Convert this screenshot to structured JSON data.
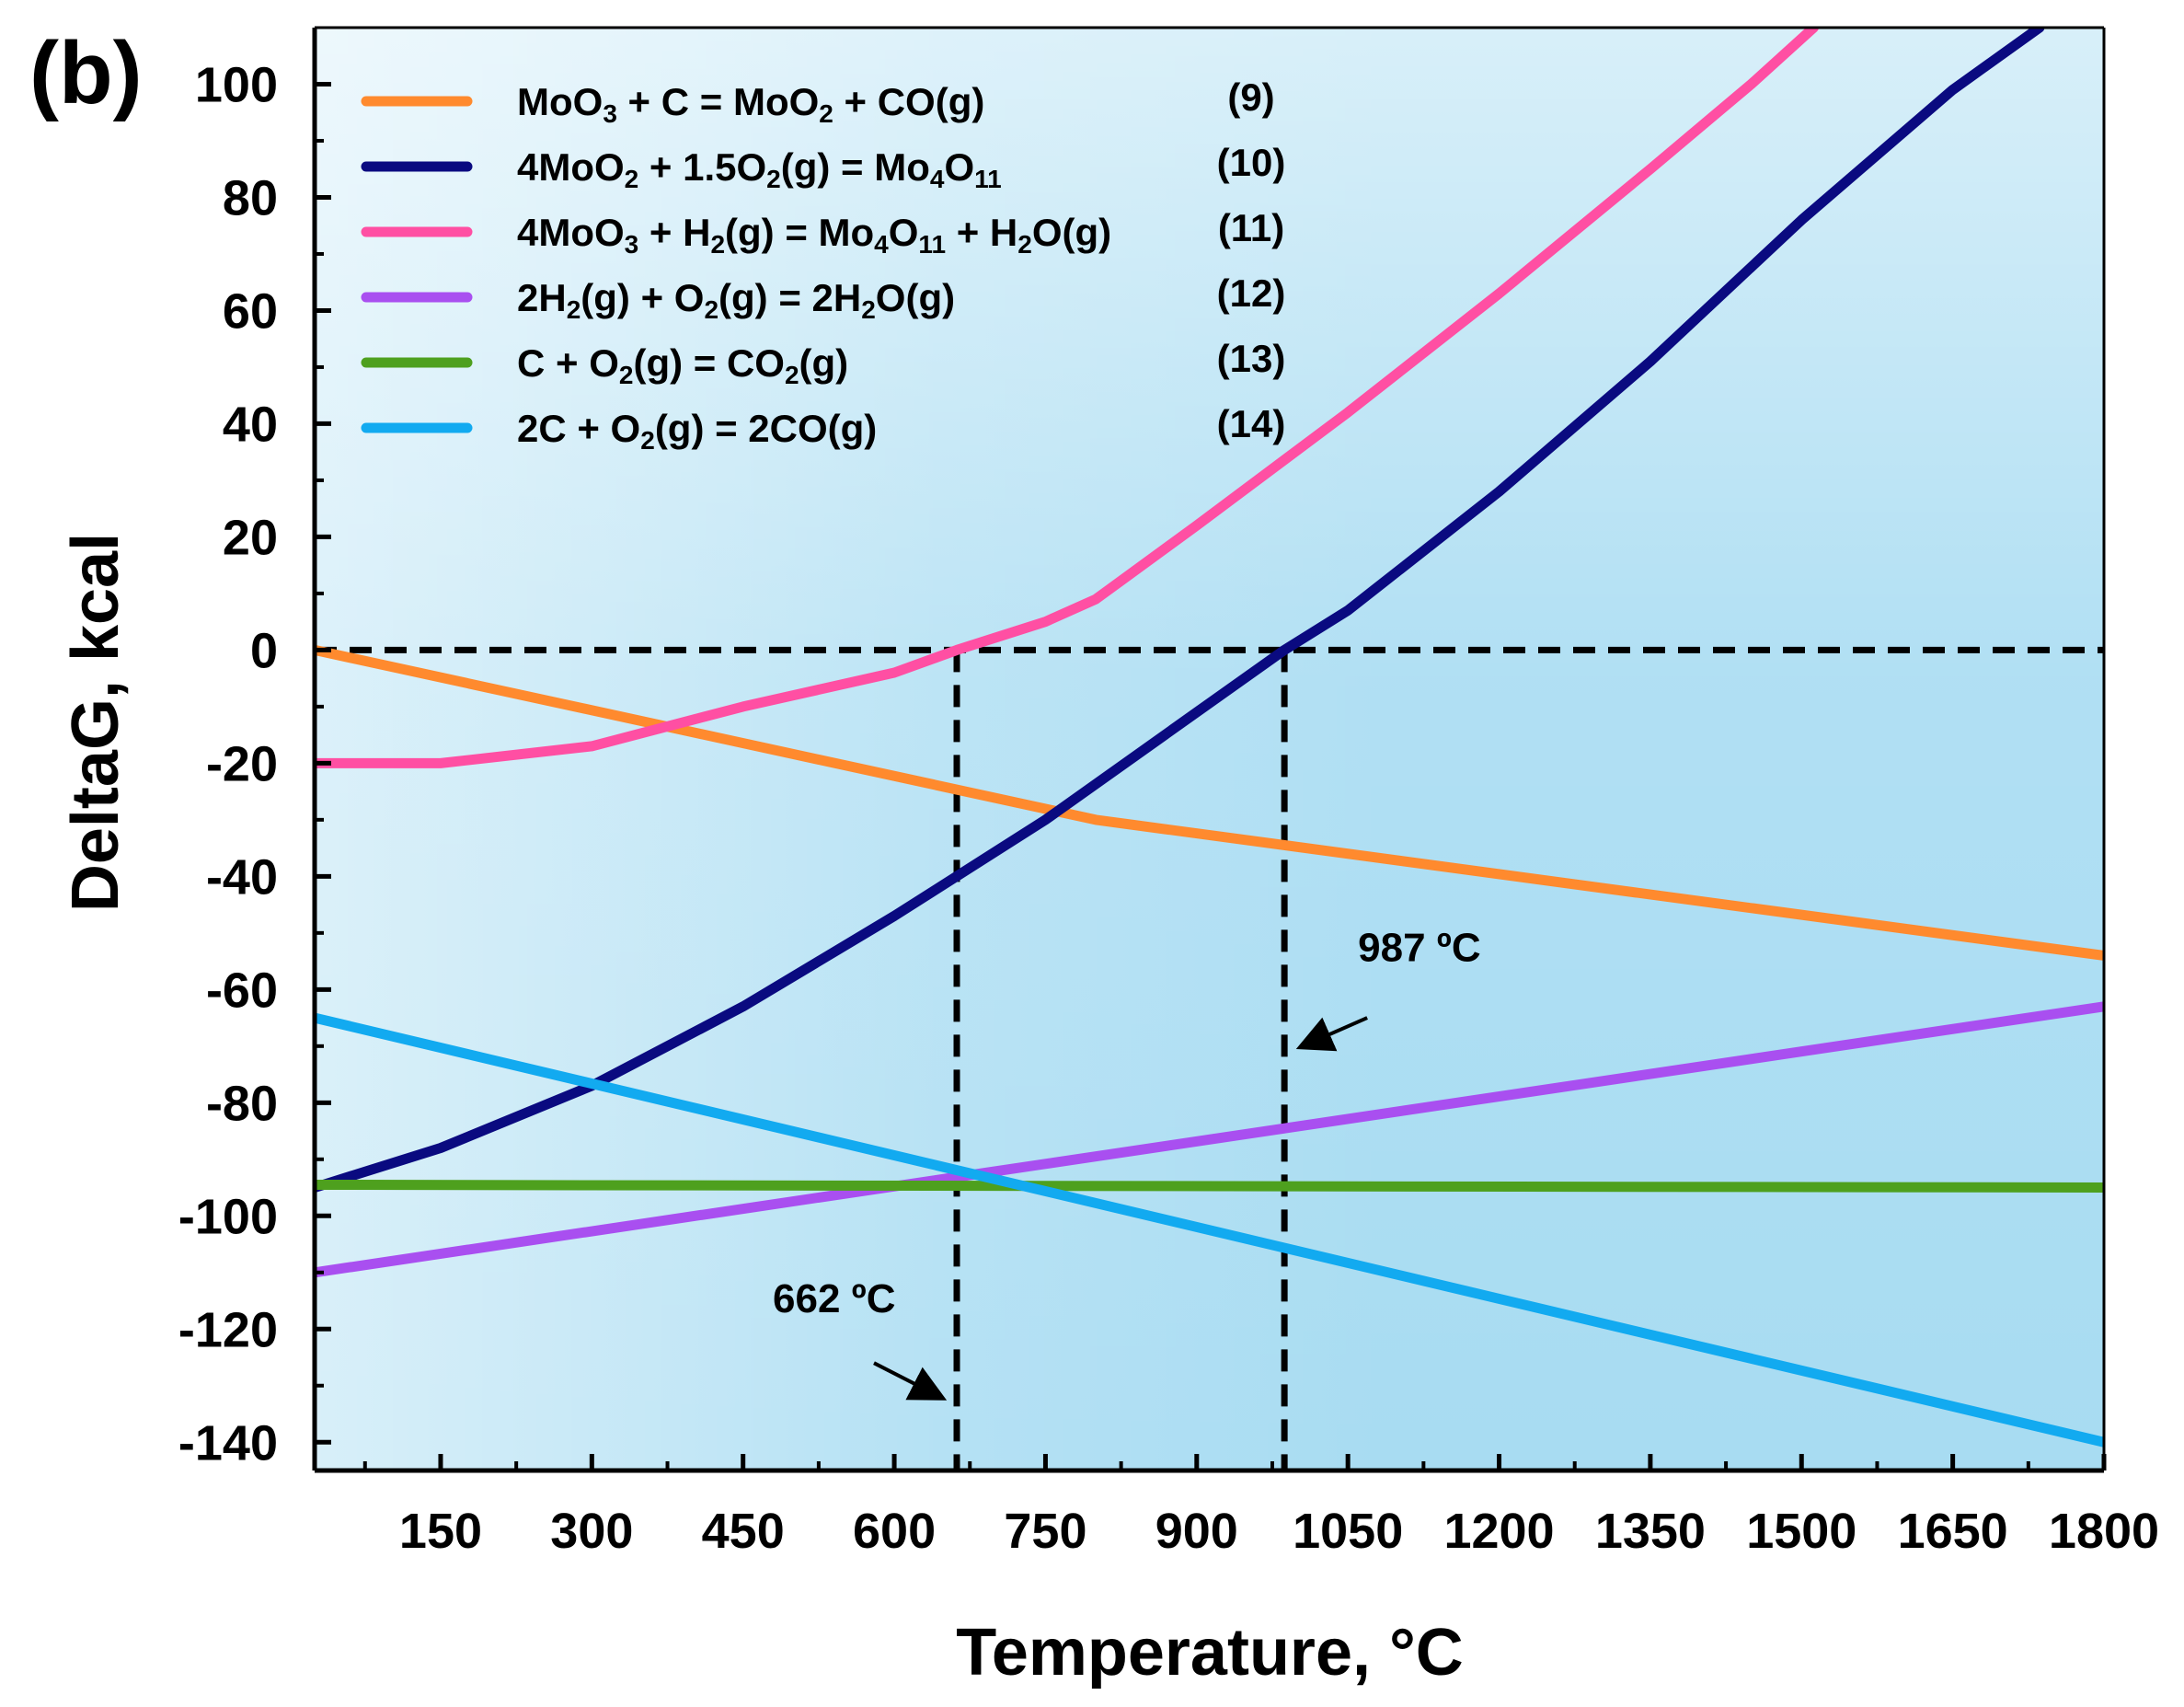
{
  "chart_data": {
    "type": "line",
    "panel_label": "(b)",
    "xlabel": "Temperature, °C",
    "ylabel": "DeltaG, kcal",
    "xlim": [
      25,
      1800
    ],
    "ylim": [
      -145,
      110
    ],
    "x_ticks": [
      150,
      300,
      450,
      600,
      750,
      900,
      1050,
      1200,
      1350,
      1500,
      1650,
      1800
    ],
    "y_ticks": [
      100,
      80,
      60,
      40,
      20,
      0,
      -20,
      -40,
      -60,
      -80,
      -100,
      -120,
      -140
    ],
    "series": [
      {
        "name": "MoO3 + C = MoO2 + CO(g)",
        "label_parts": [
          [
            "MoO",
            ""
          ],
          [
            "3",
            "sub"
          ],
          [
            " + C = MoO",
            ""
          ],
          [
            "2",
            "sub"
          ],
          [
            " + CO(g)",
            ""
          ]
        ],
        "number": "(9)",
        "color": "#ff8a2e",
        "x": [
          25,
          800,
          1800
        ],
        "y": [
          0,
          -30,
          -54
        ]
      },
      {
        "name": "4MoO2 + 1.5O2(g) = Mo4O11",
        "label_parts": [
          [
            "4MoO",
            ""
          ],
          [
            "2",
            "sub"
          ],
          [
            " + 1.5O",
            ""
          ],
          [
            "2",
            "sub"
          ],
          [
            "(g) = Mo",
            ""
          ],
          [
            "4",
            "sub"
          ],
          [
            "O",
            ""
          ],
          [
            "11",
            "sub"
          ]
        ],
        "number": "(10)",
        "color": "#0a0a80",
        "x": [
          25,
          150,
          300,
          450,
          600,
          750,
          900,
          987,
          1050,
          1200,
          1350,
          1500,
          1650,
          1736
        ],
        "y": [
          -95,
          -88,
          -77,
          -63,
          -47,
          -30,
          -11,
          0,
          7,
          28,
          51,
          76,
          99,
          110
        ]
      },
      {
        "name": "4MoO3 + H2(g) = Mo4O11 + H2O(g)",
        "label_parts": [
          [
            "4MoO",
            ""
          ],
          [
            "3",
            "sub"
          ],
          [
            " + H",
            ""
          ],
          [
            "2",
            "sub"
          ],
          [
            "(g) = Mo",
            ""
          ],
          [
            "4",
            "sub"
          ],
          [
            "O",
            ""
          ],
          [
            "11",
            "sub"
          ],
          [
            " + H",
            ""
          ],
          [
            "2",
            "sub"
          ],
          [
            "O(g)",
            ""
          ]
        ],
        "number": "(11)",
        "color": "#ff4fa3",
        "x": [
          25,
          150,
          300,
          450,
          600,
          662,
          750,
          800,
          900,
          1050,
          1200,
          1350,
          1450,
          1512
        ],
        "y": [
          -20,
          -20,
          -17,
          -10,
          -4,
          0,
          5,
          9,
          22,
          42,
          63,
          85,
          100,
          110
        ]
      },
      {
        "name": "2H2(g) + O2(g) = 2H2O(g)",
        "label_parts": [
          [
            "2H",
            ""
          ],
          [
            "2",
            "sub"
          ],
          [
            "(g) + O",
            ""
          ],
          [
            "2",
            "sub"
          ],
          [
            "(g) = 2H",
            ""
          ],
          [
            "2",
            "sub"
          ],
          [
            "O(g)",
            ""
          ]
        ],
        "number": "(12)",
        "color": "#a94ff0",
        "x": [
          25,
          1800
        ],
        "y": [
          -110,
          -63
        ]
      },
      {
        "name": "C + O2(g) = CO2(g)",
        "label_parts": [
          [
            "C + O",
            ""
          ],
          [
            "2",
            "sub"
          ],
          [
            "(g) = CO",
            ""
          ],
          [
            "2",
            "sub"
          ],
          [
            "(g)",
            ""
          ]
        ],
        "number": "(13)",
        "color": "#4ea01e",
        "x": [
          25,
          1800
        ],
        "y": [
          -94.5,
          -95
        ]
      },
      {
        "name": "2C + O2(g) = 2CO(g)",
        "label_parts": [
          [
            "2C + O",
            ""
          ],
          [
            "2",
            "sub"
          ],
          [
            "(g) = 2CO(g)",
            ""
          ]
        ],
        "number": "(14)",
        "color": "#12aaf0",
        "x": [
          25,
          1800
        ],
        "y": [
          -65,
          -140
        ]
      }
    ],
    "reference_lines": [
      {
        "type": "horizontal",
        "y": 0,
        "x_range": [
          25,
          1800
        ],
        "style": "dashed"
      },
      {
        "type": "vertical",
        "x": 662,
        "y_range": [
          -145,
          0
        ],
        "style": "dashed"
      },
      {
        "type": "vertical",
        "x": 987,
        "y_range": [
          -145,
          0
        ],
        "style": "dashed"
      }
    ],
    "annotations": [
      {
        "text": "987 ºC",
        "points_to_x": 987,
        "points_to_y": -70
      },
      {
        "text": "662 ºC",
        "points_to_x": 662,
        "points_to_y": -132
      }
    ],
    "grid": false,
    "legend_position": "top-left"
  }
}
